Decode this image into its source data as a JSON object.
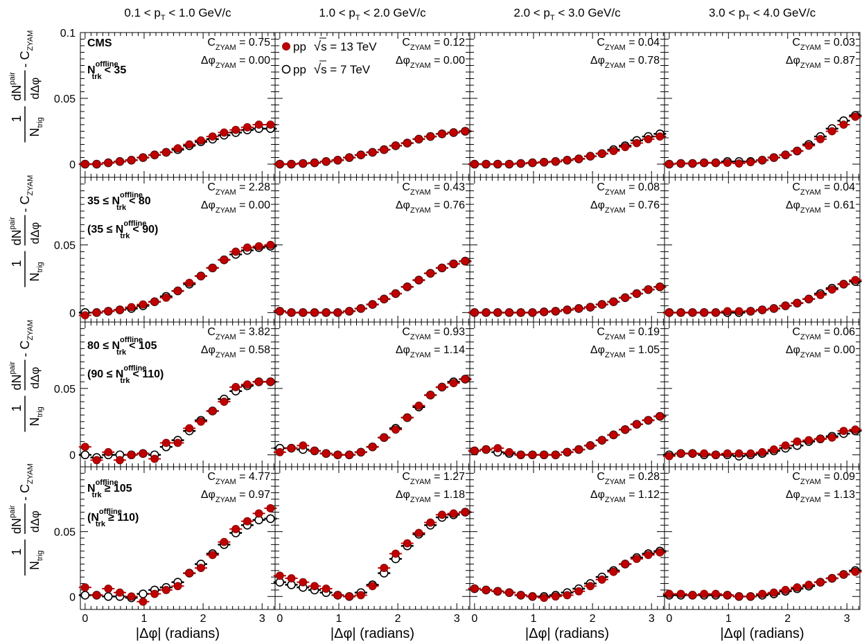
{
  "chart_data": {
    "type": "scatter",
    "grid": false,
    "xlabel": "|Δφ| (radians)",
    "ylabel": "1/N_trig dN^pair/dΔφ - C_ZYAM",
    "collaboration": "CMS",
    "x_ticks": [
      0,
      1,
      2,
      3
    ],
    "legend": [
      {
        "marker": "filled",
        "color": "#c00000",
        "text": "pp √s = 13 TeV"
      },
      {
        "marker": "open",
        "color": "#000000",
        "text": "pp √s = 7 TeV"
      }
    ],
    "x": [
      0.0,
      0.196,
      0.393,
      0.589,
      0.785,
      0.982,
      1.178,
      1.374,
      1.571,
      1.767,
      1.963,
      2.16,
      2.356,
      2.553,
      2.749,
      2.945,
      3.142
    ],
    "columns": [
      {
        "label": "0.1 < p_T < 1.0 GeV/c"
      },
      {
        "label": "1.0 < p_T < 2.0 GeV/c"
      },
      {
        "label": "2.0 < p_T < 3.0 GeV/c"
      },
      {
        "label": "3.0 < p_T < 4.0 GeV/c"
      }
    ],
    "rows": [
      {
        "label13": "N_trk^offline < 35",
        "label7": "",
        "ylim": [
          -0.01,
          0.1
        ],
        "y_ticks": [
          0,
          0.05,
          0.1
        ]
      },
      {
        "label13": "35 ≤ N_trk^offline < 80",
        "label7": "(35 ≤ N_trk^offline < 90)",
        "ylim": [
          -0.007,
          0.1
        ],
        "y_ticks": [
          0,
          0.05
        ]
      },
      {
        "label13": "80 ≤ N_trk^offline < 105",
        "label7": "(90 ≤ N_trk^offline < 110)",
        "ylim": [
          -0.009,
          0.1
        ],
        "y_ticks": [
          0,
          0.05
        ]
      },
      {
        "label13": "N_trk^offline ≥ 105",
        "label7": "(N_trk^offline ≥ 110)",
        "ylim": [
          -0.01,
          0.1
        ],
        "y_ticks": [
          0,
          0.05
        ]
      }
    ],
    "panels": [
      {
        "row": 0,
        "col": 0,
        "czyam": "0.75",
        "dphi": "0.00",
        "pp13": [
          0.0,
          0.0,
          0.001,
          0.002,
          0.003,
          0.005,
          0.007,
          0.009,
          0.012,
          0.015,
          0.018,
          0.021,
          0.024,
          0.026,
          0.028,
          0.03,
          0.03
        ],
        "pp7": [
          0.0,
          0.0,
          0.001,
          0.002,
          0.003,
          0.005,
          0.007,
          0.009,
          0.011,
          0.014,
          0.017,
          0.019,
          0.022,
          0.024,
          0.026,
          0.027,
          0.027
        ]
      },
      {
        "row": 0,
        "col": 1,
        "czyam": "0.12",
        "dphi": "0.00",
        "pp13": [
          0.0,
          0.0,
          0.0005,
          0.001,
          0.002,
          0.003,
          0.005,
          0.007,
          0.009,
          0.011,
          0.014,
          0.016,
          0.019,
          0.021,
          0.023,
          0.024,
          0.025
        ],
        "pp7": [
          0.0,
          0.0,
          0.0005,
          0.001,
          0.002,
          0.003,
          0.005,
          0.007,
          0.009,
          0.011,
          0.014,
          0.016,
          0.019,
          0.021,
          0.023,
          0.024,
          0.025
        ]
      },
      {
        "row": 0,
        "col": 2,
        "czyam": "0.04",
        "dphi": "0.78",
        "pp13": [
          0.0,
          0.0,
          0.0,
          0.0,
          0.0005,
          0.001,
          0.0015,
          0.002,
          0.003,
          0.004,
          0.006,
          0.008,
          0.01,
          0.013,
          0.016,
          0.019,
          0.021
        ],
        "pp7": [
          0.0,
          0.0,
          0.0,
          0.0,
          0.0005,
          0.001,
          0.0015,
          0.002,
          0.003,
          0.004,
          0.006,
          0.008,
          0.011,
          0.014,
          0.018,
          0.021,
          0.023
        ]
      },
      {
        "row": 0,
        "col": 3,
        "czyam": "0.03",
        "dphi": "0.87",
        "pp13": [
          0.0,
          0.0005,
          0.0005,
          0.001,
          0.001,
          0.001,
          0.0005,
          0.0015,
          0.003,
          0.005,
          0.007,
          0.01,
          0.014,
          0.019,
          0.025,
          0.03,
          0.036
        ],
        "pp7": [
          0.0,
          0.0005,
          0.0005,
          0.001,
          0.001,
          0.002,
          0.002,
          0.002,
          0.003,
          0.005,
          0.007,
          0.01,
          0.015,
          0.021,
          0.027,
          0.033,
          0.037
        ]
      },
      {
        "row": 1,
        "col": 0,
        "czyam": "2.28",
        "dphi": "0.00",
        "pp13": [
          -0.002,
          0.0,
          0.001,
          0.002,
          0.004,
          0.006,
          0.008,
          0.011,
          0.016,
          0.022,
          0.027,
          0.033,
          0.039,
          0.045,
          0.048,
          0.049,
          0.05
        ],
        "pp7": [
          0.0,
          0.0,
          0.001,
          0.002,
          0.003,
          0.005,
          0.008,
          0.012,
          0.016,
          0.021,
          0.027,
          0.033,
          0.039,
          0.043,
          0.046,
          0.048,
          0.049
        ]
      },
      {
        "row": 1,
        "col": 1,
        "czyam": "0.43",
        "dphi": "0.76",
        "pp13": [
          0.001,
          0.0,
          0.0,
          0.0,
          0.0,
          0.0,
          0.001,
          0.003,
          0.006,
          0.01,
          0.014,
          0.019,
          0.024,
          0.029,
          0.033,
          0.036,
          0.038
        ],
        "pp7": [
          0.001,
          0.0,
          0.0,
          0.0,
          0.0,
          0.0,
          0.001,
          0.003,
          0.006,
          0.01,
          0.014,
          0.019,
          0.024,
          0.029,
          0.033,
          0.036,
          0.038
        ]
      },
      {
        "row": 1,
        "col": 2,
        "czyam": "0.08",
        "dphi": "0.76",
        "pp13": [
          0.0,
          0.0,
          0.0,
          0.0,
          0.0,
          0.0,
          0.0005,
          0.001,
          0.002,
          0.003,
          0.004,
          0.006,
          0.008,
          0.011,
          0.014,
          0.017,
          0.019
        ],
        "pp7": [
          0.0,
          0.0,
          0.0,
          0.0,
          0.0,
          0.0,
          0.0005,
          0.001,
          0.002,
          0.003,
          0.004,
          0.006,
          0.008,
          0.011,
          0.014,
          0.017,
          0.019
        ]
      },
      {
        "row": 1,
        "col": 3,
        "czyam": "0.04",
        "dphi": "0.61",
        "pp13": [
          0.0,
          0.0,
          0.0,
          0.0,
          0.0,
          0.001,
          0.001,
          0.001,
          0.002,
          0.003,
          0.005,
          0.007,
          0.01,
          0.013,
          0.017,
          0.021,
          0.024
        ],
        "pp7": [
          0.0,
          0.0,
          0.0,
          0.0,
          0.0,
          0.0,
          0.0,
          0.001,
          0.002,
          0.003,
          0.005,
          0.007,
          0.01,
          0.014,
          0.018,
          0.021,
          0.023
        ]
      },
      {
        "row": 2,
        "col": 0,
        "czyam": "3.82",
        "dphi": "0.58",
        "pp13": [
          0.006,
          -0.004,
          0.002,
          -0.004,
          0.0,
          0.001,
          -0.003,
          0.009,
          0.009,
          0.02,
          0.025,
          0.033,
          0.04,
          0.051,
          0.053,
          0.055,
          0.055
        ],
        "pp7": [
          0.0,
          -0.002,
          0.0,
          0.0,
          0.0,
          0.001,
          0.0,
          0.006,
          0.011,
          0.018,
          0.026,
          0.033,
          0.042,
          0.048,
          0.052,
          0.055,
          0.055
        ]
      },
      {
        "row": 2,
        "col": 1,
        "czyam": "0.93",
        "dphi": "1.14",
        "pp13": [
          0.002,
          0.005,
          0.007,
          0.003,
          0.001,
          0.0,
          0.0,
          0.002,
          0.006,
          0.013,
          0.019,
          0.028,
          0.037,
          0.045,
          0.051,
          0.054,
          0.057
        ],
        "pp7": [
          0.005,
          0.005,
          0.004,
          0.003,
          0.001,
          0.0,
          0.0,
          0.002,
          0.006,
          0.013,
          0.02,
          0.028,
          0.036,
          0.045,
          0.051,
          0.055,
          0.057
        ]
      },
      {
        "row": 2,
        "col": 2,
        "czyam": "0.19",
        "dphi": "1.05",
        "pp13": [
          0.003,
          0.004,
          0.005,
          0.002,
          0.0,
          0.0,
          0.0,
          0.0,
          0.002,
          0.004,
          0.007,
          0.011,
          0.015,
          0.019,
          0.023,
          0.026,
          0.029
        ],
        "pp7": [
          0.003,
          0.004,
          0.002,
          0.001,
          0.0,
          0.0,
          0.0,
          0.0,
          0.002,
          0.004,
          0.007,
          0.011,
          0.015,
          0.019,
          0.023,
          0.026,
          0.029
        ]
      },
      {
        "row": 2,
        "col": 3,
        "czyam": "0.06",
        "dphi": "0.00",
        "pp13": [
          -0.001,
          0.001,
          0.001,
          0.001,
          0.0,
          0.001,
          0.001,
          0.001,
          0.002,
          0.004,
          0.007,
          0.01,
          0.011,
          0.012,
          0.013,
          0.018,
          0.019
        ],
        "pp7": [
          0.0,
          0.001,
          0.001,
          0.0,
          0.0,
          0.0,
          -0.001,
          0.0,
          0.001,
          0.003,
          0.005,
          0.007,
          0.01,
          0.012,
          0.014,
          0.016,
          0.018
        ]
      },
      {
        "row": 3,
        "col": 0,
        "czyam": "4.77",
        "dphi": "0.97",
        "pp13": [
          0.007,
          0.001,
          0.006,
          0.003,
          0.0,
          -0.004,
          0.002,
          0.005,
          0.008,
          0.018,
          0.022,
          0.032,
          0.042,
          0.052,
          0.058,
          0.064,
          0.068
        ],
        "pp7": [
          0.001,
          0.001,
          0.0,
          0.0,
          -0.001,
          0.002,
          0.005,
          0.007,
          0.011,
          0.018,
          0.025,
          0.033,
          0.04,
          0.049,
          0.055,
          0.059,
          0.06
        ]
      },
      {
        "row": 3,
        "col": 1,
        "czyam": "1.27",
        "dphi": "1.18",
        "pp13": [
          0.016,
          0.014,
          0.011,
          0.008,
          0.006,
          0.001,
          0.0,
          0.001,
          0.008,
          0.022,
          0.033,
          0.041,
          0.049,
          0.057,
          0.063,
          0.064,
          0.065
        ],
        "pp7": [
          0.011,
          0.009,
          0.007,
          0.005,
          0.003,
          0.001,
          0.0,
          0.003,
          0.009,
          0.018,
          0.029,
          0.039,
          0.048,
          0.055,
          0.061,
          0.063,
          0.065
        ]
      },
      {
        "row": 3,
        "col": 2,
        "czyam": "0.28",
        "dphi": "1.12",
        "pp13": [
          0.006,
          0.005,
          0.004,
          0.003,
          0.001,
          0.0,
          -0.001,
          0.0,
          0.001,
          0.004,
          0.008,
          0.013,
          0.019,
          0.025,
          0.029,
          0.032,
          0.034
        ],
        "pp7": [
          0.006,
          0.005,
          0.004,
          0.003,
          0.001,
          0.0,
          0.0,
          0.001,
          0.003,
          0.006,
          0.01,
          0.015,
          0.02,
          0.025,
          0.03,
          0.033,
          0.035
        ]
      },
      {
        "row": 3,
        "col": 3,
        "czyam": "0.09",
        "dphi": "1.13",
        "pp13": [
          0.002,
          0.002,
          0.001,
          0.002,
          0.002,
          0.001,
          0.0,
          0.0,
          0.002,
          0.003,
          0.005,
          0.007,
          0.009,
          0.011,
          0.014,
          0.017,
          0.019
        ],
        "pp7": [
          0.001,
          0.001,
          0.001,
          0.001,
          0.001,
          0.001,
          0.0,
          0.0,
          0.001,
          0.002,
          0.004,
          0.006,
          0.008,
          0.011,
          0.014,
          0.017,
          0.02
        ]
      }
    ]
  }
}
